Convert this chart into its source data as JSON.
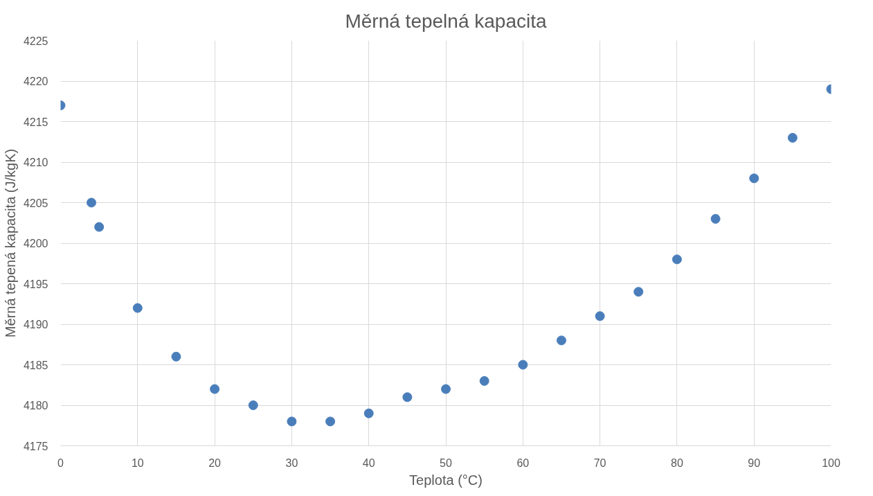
{
  "chart_data": {
    "type": "scatter",
    "title": "Měrná tepelná kapacita",
    "xlabel": "Teplota (°C)",
    "ylabel": "Měrná tepená kapacita (J/kgK)",
    "x": [
      0,
      4,
      5,
      10,
      15,
      20,
      25,
      30,
      35,
      40,
      45,
      50,
      55,
      60,
      65,
      70,
      75,
      80,
      85,
      90,
      95,
      100
    ],
    "values": [
      4217,
      4205,
      4202,
      4192,
      4186,
      4182,
      4180,
      4178,
      4178,
      4179,
      4181,
      4182,
      4183,
      4185,
      4188,
      4191,
      4194,
      4198,
      4203,
      4208,
      4213,
      4219
    ],
    "color": "#4a7ebb",
    "marker": "circle",
    "grid": true,
    "xlim": [
      0,
      100
    ],
    "xticks": [
      0,
      10,
      20,
      30,
      40,
      50,
      60,
      70,
      80,
      90,
      100
    ],
    "ylim": [
      4175,
      4225
    ],
    "yticks": [
      4175,
      4180,
      4185,
      4190,
      4195,
      4200,
      4205,
      4210,
      4215,
      4220,
      4225
    ]
  }
}
